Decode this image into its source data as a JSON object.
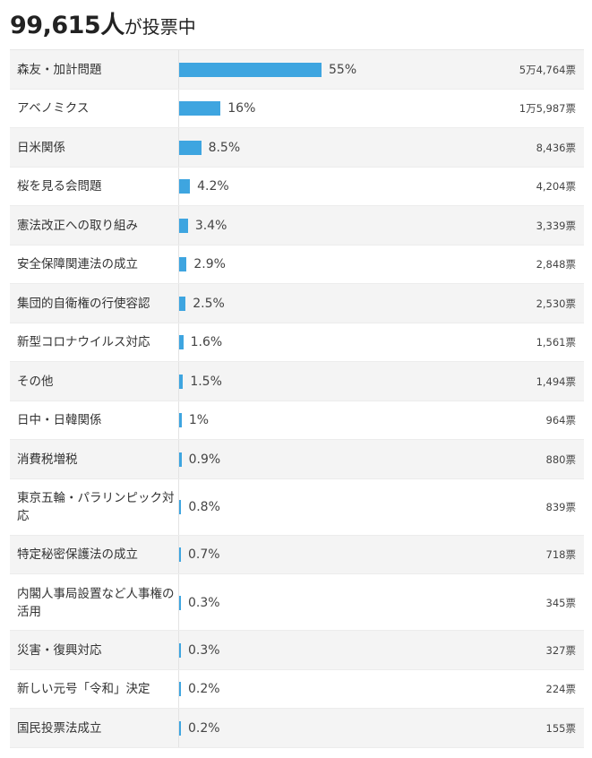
{
  "header": {
    "voter_count": "99,615",
    "voter_unit": "人",
    "status_text": "が投票中"
  },
  "bar_color": "#3ea5e0",
  "chart_data": {
    "type": "bar",
    "orientation": "horizontal",
    "categories": [
      "森友・加計問題",
      "アベノミクス",
      "日米関係",
      "桜を見る会問題",
      "憲法改正への取り組み",
      "安全保障関連法の成立",
      "集団的自衛権の行使容認",
      "新型コロナウイルス対応",
      "その他",
      "日中・日韓関係",
      "消費税増税",
      "東京五輪・パラリンピック対応",
      "特定秘密保護法の成立",
      "内閣人事局設置など人事権の活用",
      "災害・復興対応",
      "新しい元号「令和」決定",
      "国民投票法成立"
    ],
    "values": [
      55,
      16,
      8.5,
      4.2,
      3.4,
      2.9,
      2.5,
      1.6,
      1.5,
      1,
      0.9,
      0.8,
      0.7,
      0.3,
      0.3,
      0.2,
      0.2
    ],
    "percent_labels": [
      "55%",
      "16%",
      "8.5%",
      "4.2%",
      "3.4%",
      "2.9%",
      "2.5%",
      "1.6%",
      "1.5%",
      "1%",
      "0.9%",
      "0.8%",
      "0.7%",
      "0.3%",
      "0.3%",
      "0.2%",
      "0.2%"
    ],
    "vote_labels": [
      "5万4,764票",
      "1万5,987票",
      "8,436票",
      "4,204票",
      "3,339票",
      "2,848票",
      "2,530票",
      "1,561票",
      "1,494票",
      "964票",
      "880票",
      "839票",
      "718票",
      "345票",
      "327票",
      "224票",
      "155票"
    ],
    "votes": [
      54764,
      15987,
      8436,
      4204,
      3339,
      2848,
      2530,
      1561,
      1494,
      964,
      880,
      839,
      718,
      345,
      327,
      224,
      155
    ],
    "unit": "%"
  }
}
